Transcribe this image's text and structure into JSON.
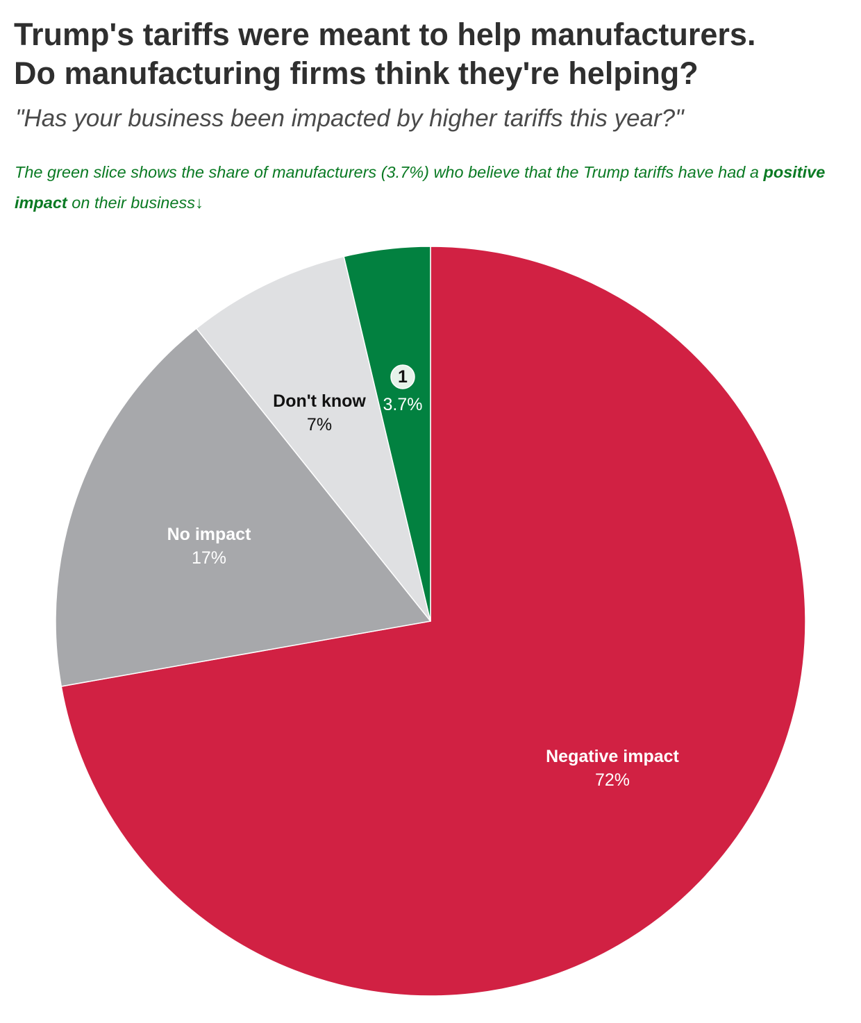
{
  "colors": {
    "title": "#2f2f2f",
    "subtitle": "#4a4a4a",
    "note": "#0a7a23",
    "positive": "#028140",
    "negative": "#d12143",
    "no_impact": "#a7a8ab",
    "dont_know": "#dfe0e2"
  },
  "chart_data": {
    "type": "pie",
    "title_line1": "Trump's tariffs were meant to help manufacturers.",
    "title_line2": "Do manufacturing firms think they're helping?",
    "subtitle": "\"Has your business been impacted by higher tariffs this year?\"",
    "note": {
      "before": "The green slice shows the share of manufacturers (3.7%) who believe that the Trump tariffs have had a ",
      "bold": "positive impact",
      "after": " on their business",
      "arrow": "↓"
    },
    "slices": [
      {
        "key": "negative",
        "label": "Negative impact",
        "value": 72,
        "value_label": "72%",
        "color": "#d12143",
        "label_color": "#ffffff"
      },
      {
        "key": "no_impact",
        "label": "No impact",
        "value": 17,
        "value_label": "17%",
        "color": "#a7a8ab",
        "label_color": "#ffffff"
      },
      {
        "key": "dont_know",
        "label": "Don't know",
        "value": 7,
        "value_label": "7%",
        "color": "#dfe0e2",
        "label_color": "#111111"
      },
      {
        "key": "positive",
        "label": "",
        "value": 3.7,
        "value_label": "3.7%",
        "color": "#028140",
        "label_color": "#ffffff",
        "marker": "1"
      }
    ],
    "start": "12 o'clock",
    "direction": "clockwise"
  }
}
